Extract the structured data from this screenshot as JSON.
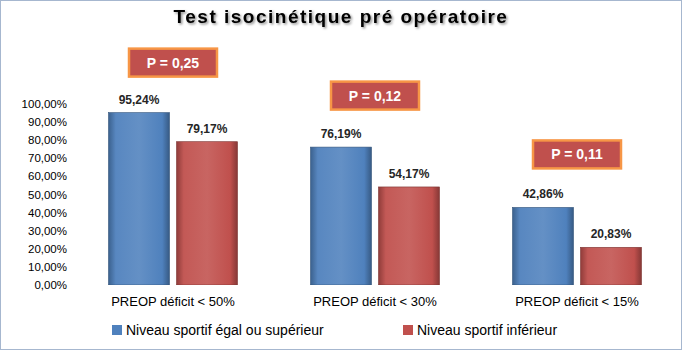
{
  "chart_data": {
    "type": "bar",
    "title": "Test isocinétique pré opératoire",
    "categories": [
      "PREOP déficit < 50%",
      "PREOP déficit < 30%",
      "PREOP déficit < 15%"
    ],
    "series": [
      {
        "name": "Niveau sportif égal ou supérieur",
        "color": "#4f81bd",
        "values": [
          95.24,
          76.19,
          42.86
        ],
        "value_labels": [
          "95,24%",
          "76,19%",
          "42,86%"
        ]
      },
      {
        "name": "Niveau sportif inférieur",
        "color": "#c0504d",
        "values": [
          79.17,
          54.17,
          20.83
        ],
        "value_labels": [
          "79,17%",
          "54,17%",
          "20,83%"
        ]
      }
    ],
    "annotations": [
      "P = 0,25",
      "P = 0,12",
      "P = 0,11"
    ],
    "ylim": [
      0,
      100
    ],
    "yticks": [
      {
        "value": 0,
        "label": "0,00%"
      },
      {
        "value": 10,
        "label": "10,00%"
      },
      {
        "value": 20,
        "label": "20,00%"
      },
      {
        "value": 30,
        "label": "30,00%"
      },
      {
        "value": 40,
        "label": "40,00%"
      },
      {
        "value": 50,
        "label": "50,00%"
      },
      {
        "value": 60,
        "label": "60,00%"
      },
      {
        "value": 70,
        "label": "70,00%"
      },
      {
        "value": 80,
        "label": "80,00%"
      },
      {
        "value": 90,
        "label": "90,00%"
      },
      {
        "value": 100,
        "label": "100,00%"
      }
    ],
    "grid": false,
    "data_labels": true,
    "legend": "bottom"
  }
}
